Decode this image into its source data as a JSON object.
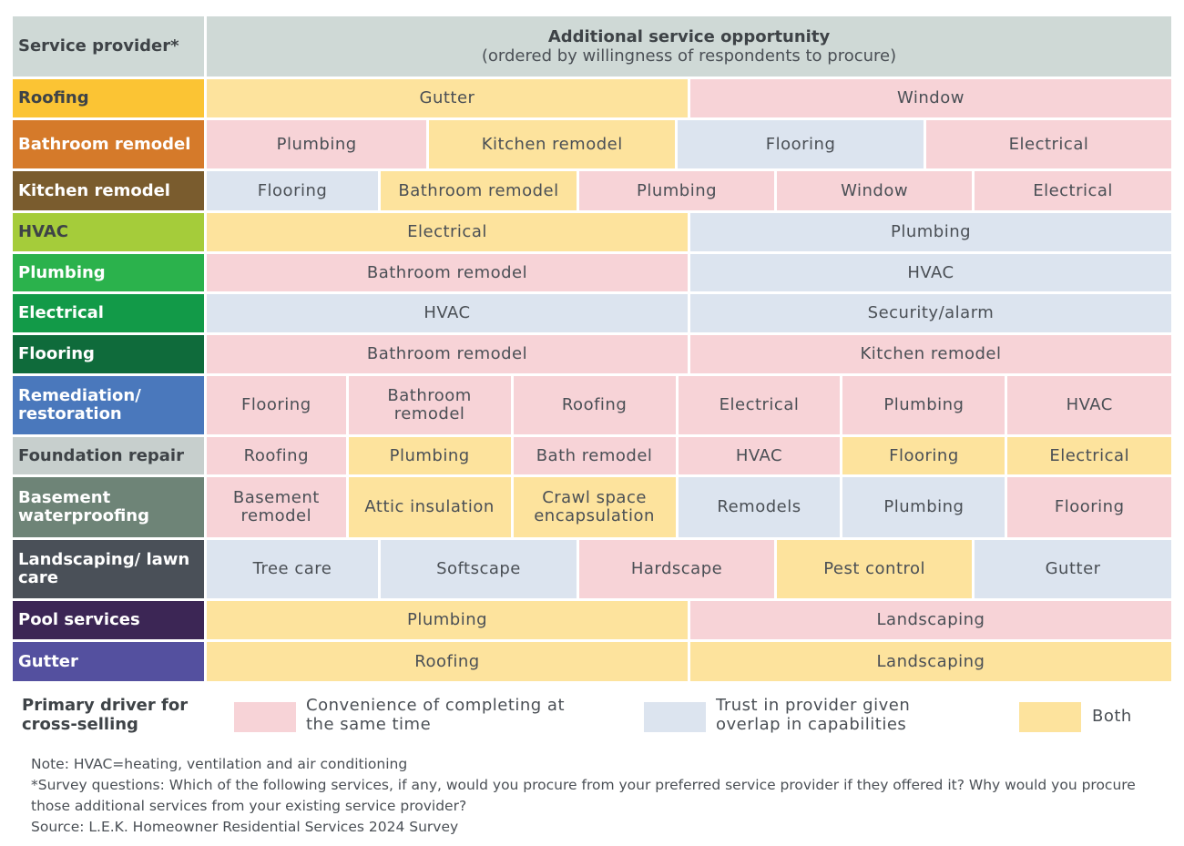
{
  "chart_data": {
    "type": "table",
    "header": {
      "provider": "Service provider*",
      "opportunity_title": "Additional service opportunity",
      "opportunity_subtitle": "(ordered by willingness of respondents to procure)"
    },
    "colors": {
      "convenience": "#f7d3d7",
      "trust": "#dce4ef",
      "both": "#fde39d"
    },
    "rows": [
      {
        "provider": "Roofing",
        "color": "#fbc434",
        "dark": true,
        "cells": [
          [
            "Gutter",
            "both"
          ],
          [
            "Window",
            "convenience"
          ]
        ]
      },
      {
        "provider": "Bathroom remodel",
        "color": "#d57a2a",
        "cells": [
          [
            "Plumbing",
            "convenience"
          ],
          [
            "Kitchen remodel",
            "both"
          ],
          [
            "Flooring",
            "trust"
          ],
          [
            "Electrical",
            "convenience"
          ]
        ]
      },
      {
        "provider": "Kitchen remodel",
        "color": "#7a5c2e",
        "cells": [
          [
            "Flooring",
            "trust"
          ],
          [
            "Bathroom remodel",
            "both"
          ],
          [
            "Plumbing",
            "convenience"
          ],
          [
            "Window",
            "convenience"
          ],
          [
            "Electrical",
            "convenience"
          ]
        ]
      },
      {
        "provider": "HVAC",
        "color": "#a5cc3a",
        "dark": true,
        "cells": [
          [
            "Electrical",
            "both"
          ],
          [
            "Plumbing",
            "trust"
          ]
        ]
      },
      {
        "provider": "Plumbing",
        "color": "#2bb24c",
        "cells": [
          [
            "Bathroom remodel",
            "convenience"
          ],
          [
            "HVAC",
            "trust"
          ]
        ]
      },
      {
        "provider": "Electrical",
        "color": "#129a48",
        "cells": [
          [
            "HVAC",
            "trust"
          ],
          [
            "Security/alarm",
            "trust"
          ]
        ]
      },
      {
        "provider": "Flooring",
        "color": "#0f6b3b",
        "cells": [
          [
            "Bathroom remodel",
            "convenience"
          ],
          [
            "Kitchen remodel",
            "convenience"
          ]
        ]
      },
      {
        "provider": "Remediation/ restoration",
        "color": "#4a78bc",
        "cells": [
          [
            "Flooring",
            "convenience"
          ],
          [
            "Bathroom remodel",
            "convenience"
          ],
          [
            "Roofing",
            "convenience"
          ],
          [
            "Electrical",
            "convenience"
          ],
          [
            "Plumbing",
            "convenience"
          ],
          [
            "HVAC",
            "convenience"
          ]
        ]
      },
      {
        "provider": "Foundation repair",
        "color": "#c7cfcd",
        "dark": true,
        "cells": [
          [
            "Roofing",
            "convenience"
          ],
          [
            "Plumbing",
            "both"
          ],
          [
            "Bath remodel",
            "convenience"
          ],
          [
            "HVAC",
            "convenience"
          ],
          [
            "Flooring",
            "both"
          ],
          [
            "Electrical",
            "both"
          ]
        ]
      },
      {
        "provider": "Basement waterproofing",
        "color": "#6e8477",
        "cells": [
          [
            "Basement remodel",
            "convenience"
          ],
          [
            "Attic insulation",
            "both"
          ],
          [
            "Crawl space encapsulation",
            "both"
          ],
          [
            "Remodels",
            "trust"
          ],
          [
            "Plumbing",
            "trust"
          ],
          [
            "Flooring",
            "convenience"
          ]
        ]
      },
      {
        "provider": "Landscaping/ lawn care",
        "color": "#4a5058",
        "cells": [
          [
            "Tree care",
            "trust"
          ],
          [
            "Softscape",
            "trust"
          ],
          [
            "Hardscape",
            "convenience"
          ],
          [
            "Pest control",
            "both"
          ],
          [
            "Gutter",
            "trust"
          ]
        ]
      },
      {
        "provider": "Pool services",
        "color": "#3c2655",
        "cells": [
          [
            "Plumbing",
            "both"
          ],
          [
            "Landscaping",
            "convenience"
          ]
        ]
      },
      {
        "provider": "Gutter",
        "color": "#54509f",
        "cells": [
          [
            "Roofing",
            "both"
          ],
          [
            "Landscaping",
            "both"
          ]
        ]
      }
    ],
    "legend": {
      "title": "Primary driver for cross-selling",
      "items": [
        {
          "key": "convenience",
          "label": "Convenience of completing at the same time"
        },
        {
          "key": "trust",
          "label": "Trust in provider given overlap in capabilities"
        },
        {
          "key": "both",
          "label": "Both"
        }
      ]
    }
  },
  "notes": [
    "Note: HVAC=heating, ventilation and air conditioning",
    "*Survey questions: Which of the following services, if any, would you procure from your preferred service provider if they offered it? Why would you procure those additional services from your existing service provider?",
    "Source: L.E.K. Homeowner Residential Services 2024 Survey"
  ]
}
